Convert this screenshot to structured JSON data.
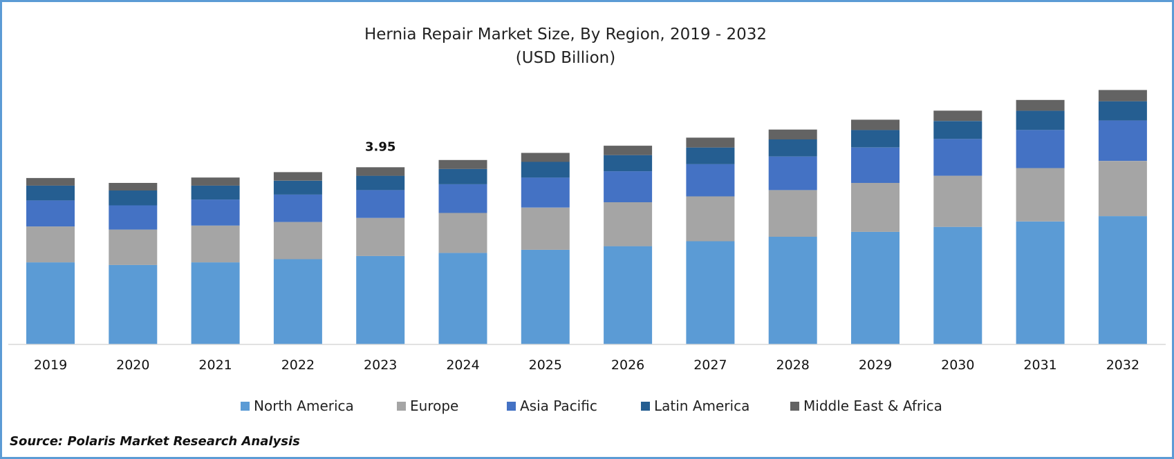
{
  "chart_data": {
    "type": "bar",
    "stacked": true,
    "title": "Hernia Repair Market Size, By Region, 2019 - 2032",
    "subtitle": "(USD Billion)",
    "categories": [
      "2019",
      "2020",
      "2021",
      "2022",
      "2023",
      "2024",
      "2025",
      "2026",
      "2027",
      "2028",
      "2029",
      "2030",
      "2031",
      "2032"
    ],
    "series": [
      {
        "name": "North America",
        "color": "#5b9bd5",
        "values": [
          1.83,
          1.77,
          1.83,
          1.9,
          1.97,
          2.04,
          2.11,
          2.19,
          2.3,
          2.4,
          2.51,
          2.62,
          2.74,
          2.86
        ]
      },
      {
        "name": "Europe",
        "color": "#a5a5a5",
        "values": [
          0.8,
          0.79,
          0.82,
          0.83,
          0.85,
          0.89,
          0.94,
          0.98,
          1.0,
          1.04,
          1.09,
          1.14,
          1.19,
          1.23
        ]
      },
      {
        "name": "Asia Pacific",
        "color": "#4472c4",
        "values": [
          0.58,
          0.54,
          0.58,
          0.61,
          0.62,
          0.64,
          0.67,
          0.69,
          0.72,
          0.75,
          0.79,
          0.82,
          0.85,
          0.9
        ]
      },
      {
        "name": "Latin America",
        "color": "#255e91",
        "values": [
          0.33,
          0.33,
          0.31,
          0.31,
          0.32,
          0.34,
          0.35,
          0.36,
          0.37,
          0.38,
          0.39,
          0.4,
          0.43,
          0.43
        ]
      },
      {
        "name": "Middle East & Africa",
        "color": "#636363",
        "values": [
          0.17,
          0.17,
          0.18,
          0.19,
          0.19,
          0.2,
          0.2,
          0.21,
          0.22,
          0.22,
          0.23,
          0.23,
          0.24,
          0.25
        ]
      }
    ],
    "data_labels": [
      {
        "category": "2023",
        "text": "3.95"
      }
    ],
    "ylim": [
      0,
      6.0
    ],
    "y_axis_visible": false,
    "grid": false,
    "legend_position": "bottom"
  },
  "source_note": "Source: Polaris Market Research Analysis"
}
